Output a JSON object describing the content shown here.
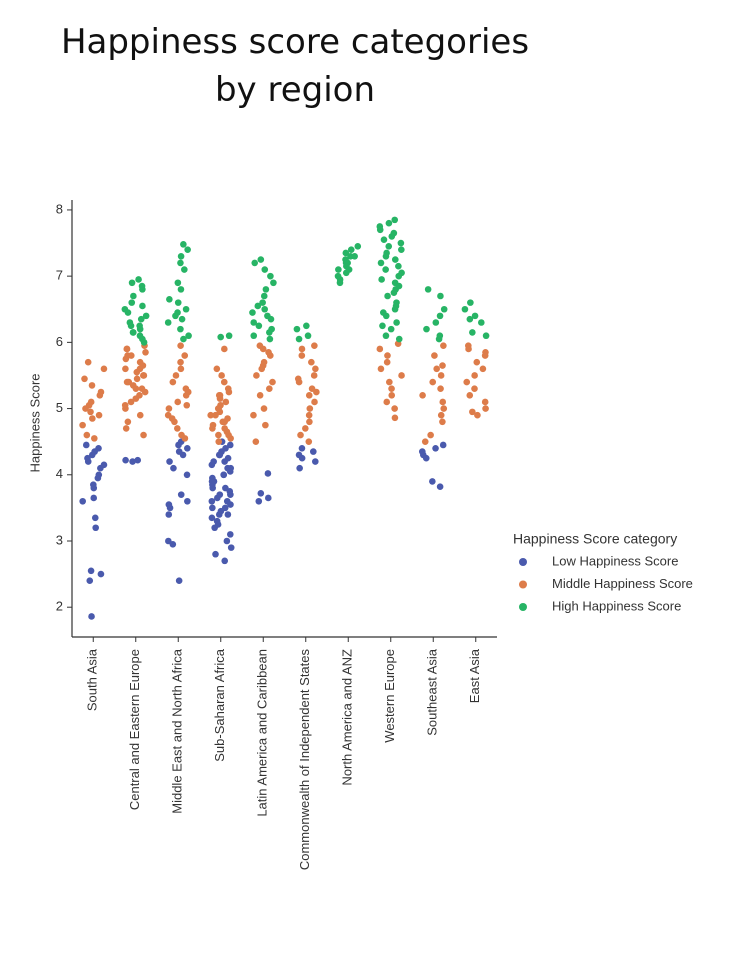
{
  "chart_data": {
    "type": "strip",
    "title": "Happiness score categories by region",
    "ylabel": "Happiness Score",
    "legend_title": "Happiness Score category",
    "legend": "right",
    "categories": [
      "South Asia",
      "Central and Eastern Europe",
      "Middle East and North Africa",
      "Sub-Saharan Africa",
      "Latin America and Caribbean",
      "Commonwealth of Independent States",
      "North America and ANZ",
      "Western Europe",
      "Southeast Asia",
      "East Asia"
    ],
    "ylim": [
      1.55,
      8.15
    ],
    "yticks": [
      2,
      3,
      4,
      5,
      6,
      7,
      8
    ],
    "series": [
      {
        "name": "Low Happiness Score",
        "color": "#4a5aad",
        "values": [
          [
            4.45,
            4.4,
            4.35,
            4.3,
            4.2,
            4.1,
            4.0,
            3.85,
            3.8,
            3.65,
            3.6,
            3.35,
            3.2,
            2.55,
            2.5,
            2.4,
            1.86,
            4.25,
            4.15,
            3.95
          ],
          [
            4.22,
            4.22,
            4.2
          ],
          [
            4.5,
            4.45,
            4.4,
            4.3,
            4.2,
            4.1,
            4.0,
            3.7,
            3.6,
            3.55,
            3.5,
            3.4,
            3.0,
            2.95,
            2.4,
            4.35
          ],
          [
            4.5,
            4.45,
            4.4,
            4.35,
            4.3,
            4.25,
            4.2,
            4.15,
            4.1,
            4.05,
            4.0,
            3.95,
            3.9,
            3.85,
            3.8,
            3.75,
            3.7,
            3.65,
            3.6,
            3.55,
            3.5,
            3.45,
            3.4,
            3.35,
            3.3,
            3.25,
            3.2,
            3.1,
            3.0,
            2.9,
            2.8,
            2.7,
            4.3,
            4.2,
            4.1,
            4.0,
            3.9,
            3.8,
            3.7,
            3.6,
            3.5,
            3.4
          ],
          [
            4.02,
            3.72,
            3.65,
            3.6
          ],
          [
            4.4,
            4.35,
            4.3,
            4.25,
            4.2,
            4.1
          ],
          [],
          [],
          [
            4.45,
            4.4,
            4.35,
            4.3,
            4.25,
            3.9,
            3.82
          ],
          []
        ]
      },
      {
        "name": "Middle Happiness Score",
        "color": "#dd7c4a",
        "values": [
          [
            5.7,
            5.6,
            5.45,
            5.35,
            5.2,
            5.1,
            5.05,
            5.0,
            4.95,
            4.85,
            4.75,
            4.6,
            4.55,
            5.25,
            4.9
          ],
          [
            5.95,
            5.9,
            5.85,
            5.8,
            5.75,
            5.7,
            5.65,
            5.6,
            5.55,
            5.5,
            5.45,
            5.4,
            5.35,
            5.3,
            5.25,
            5.2,
            5.15,
            5.1,
            5.05,
            5.0,
            4.9,
            4.8,
            4.7,
            4.6,
            5.9,
            5.8,
            5.6,
            5.5,
            5.4,
            5.3
          ],
          [
            5.95,
            5.8,
            5.6,
            5.5,
            5.4,
            5.3,
            5.2,
            5.1,
            5.0,
            4.9,
            4.8,
            4.7,
            4.6,
            4.55,
            5.7,
            5.25,
            5.05,
            4.85
          ],
          [
            5.9,
            5.6,
            5.5,
            5.4,
            5.3,
            5.25,
            5.2,
            5.15,
            5.1,
            5.05,
            5.0,
            4.95,
            4.9,
            4.85,
            4.8,
            4.75,
            4.7,
            4.65,
            4.6,
            4.55,
            4.5,
            5.2,
            5.0,
            4.9,
            4.8,
            4.7,
            4.6
          ],
          [
            5.95,
            5.9,
            5.8,
            5.7,
            5.6,
            5.5,
            5.4,
            5.3,
            5.2,
            5.0,
            4.9,
            4.75,
            4.5,
            5.85,
            5.65
          ],
          [
            5.95,
            5.9,
            5.8,
            5.7,
            5.6,
            5.5,
            5.4,
            5.3,
            5.2,
            5.1,
            5.0,
            4.9,
            4.8,
            4.7,
            4.6,
            4.5,
            5.45,
            5.25
          ],
          [],
          [
            5.98,
            5.9,
            5.8,
            5.6,
            5.5,
            5.4,
            5.3,
            5.2,
            5.1,
            5.0,
            4.86,
            5.7
          ],
          [
            5.95,
            5.8,
            5.6,
            5.5,
            5.4,
            5.3,
            5.2,
            5.1,
            5.0,
            4.9,
            4.8,
            4.6,
            4.5,
            5.65
          ],
          [
            5.95,
            5.9,
            5.85,
            5.8,
            5.7,
            5.6,
            5.5,
            5.4,
            5.3,
            5.2,
            5.1,
            5.0,
            4.9,
            4.95
          ]
        ]
      },
      {
        "name": "High Happiness Score",
        "color": "#27b465",
        "values": [
          [],
          [
            6.95,
            6.9,
            6.8,
            6.7,
            6.6,
            6.5,
            6.45,
            6.4,
            6.35,
            6.3,
            6.25,
            6.2,
            6.15,
            6.1,
            6.05,
            6.0,
            6.85,
            6.55,
            6.25,
            6.15
          ],
          [
            7.48,
            7.4,
            7.3,
            7.2,
            7.1,
            6.9,
            6.8,
            6.65,
            6.6,
            6.5,
            6.4,
            6.3,
            6.2,
            6.1,
            6.05,
            6.45,
            6.35
          ],
          [
            6.1,
            6.08
          ],
          [
            7.25,
            7.2,
            7.1,
            7.0,
            6.9,
            6.8,
            6.7,
            6.6,
            6.5,
            6.4,
            6.3,
            6.2,
            6.1,
            6.05,
            6.35,
            6.45,
            6.55,
            6.25,
            6.15
          ],
          [
            6.25,
            6.2,
            6.1,
            6.05
          ],
          [
            7.45,
            7.4,
            7.35,
            7.3,
            7.25,
            7.2,
            7.15,
            7.1,
            7.05,
            7.0,
            6.95,
            6.9,
            7.3,
            7.2,
            7.1
          ],
          [
            7.85,
            7.8,
            7.75,
            7.7,
            7.6,
            7.5,
            7.4,
            7.3,
            7.2,
            7.1,
            7.0,
            6.9,
            6.8,
            6.7,
            6.6,
            6.5,
            6.4,
            6.3,
            6.2,
            6.1,
            6.05,
            7.65,
            7.55,
            7.45,
            7.35,
            7.25,
            7.15,
            7.05,
            6.95,
            6.85,
            6.75,
            6.55,
            6.45,
            6.25
          ],
          [
            6.8,
            6.7,
            6.5,
            6.4,
            6.3,
            6.2,
            6.1,
            6.05
          ],
          [
            6.6,
            6.5,
            6.4,
            6.35,
            6.3,
            6.15,
            6.1
          ]
        ]
      }
    ]
  }
}
